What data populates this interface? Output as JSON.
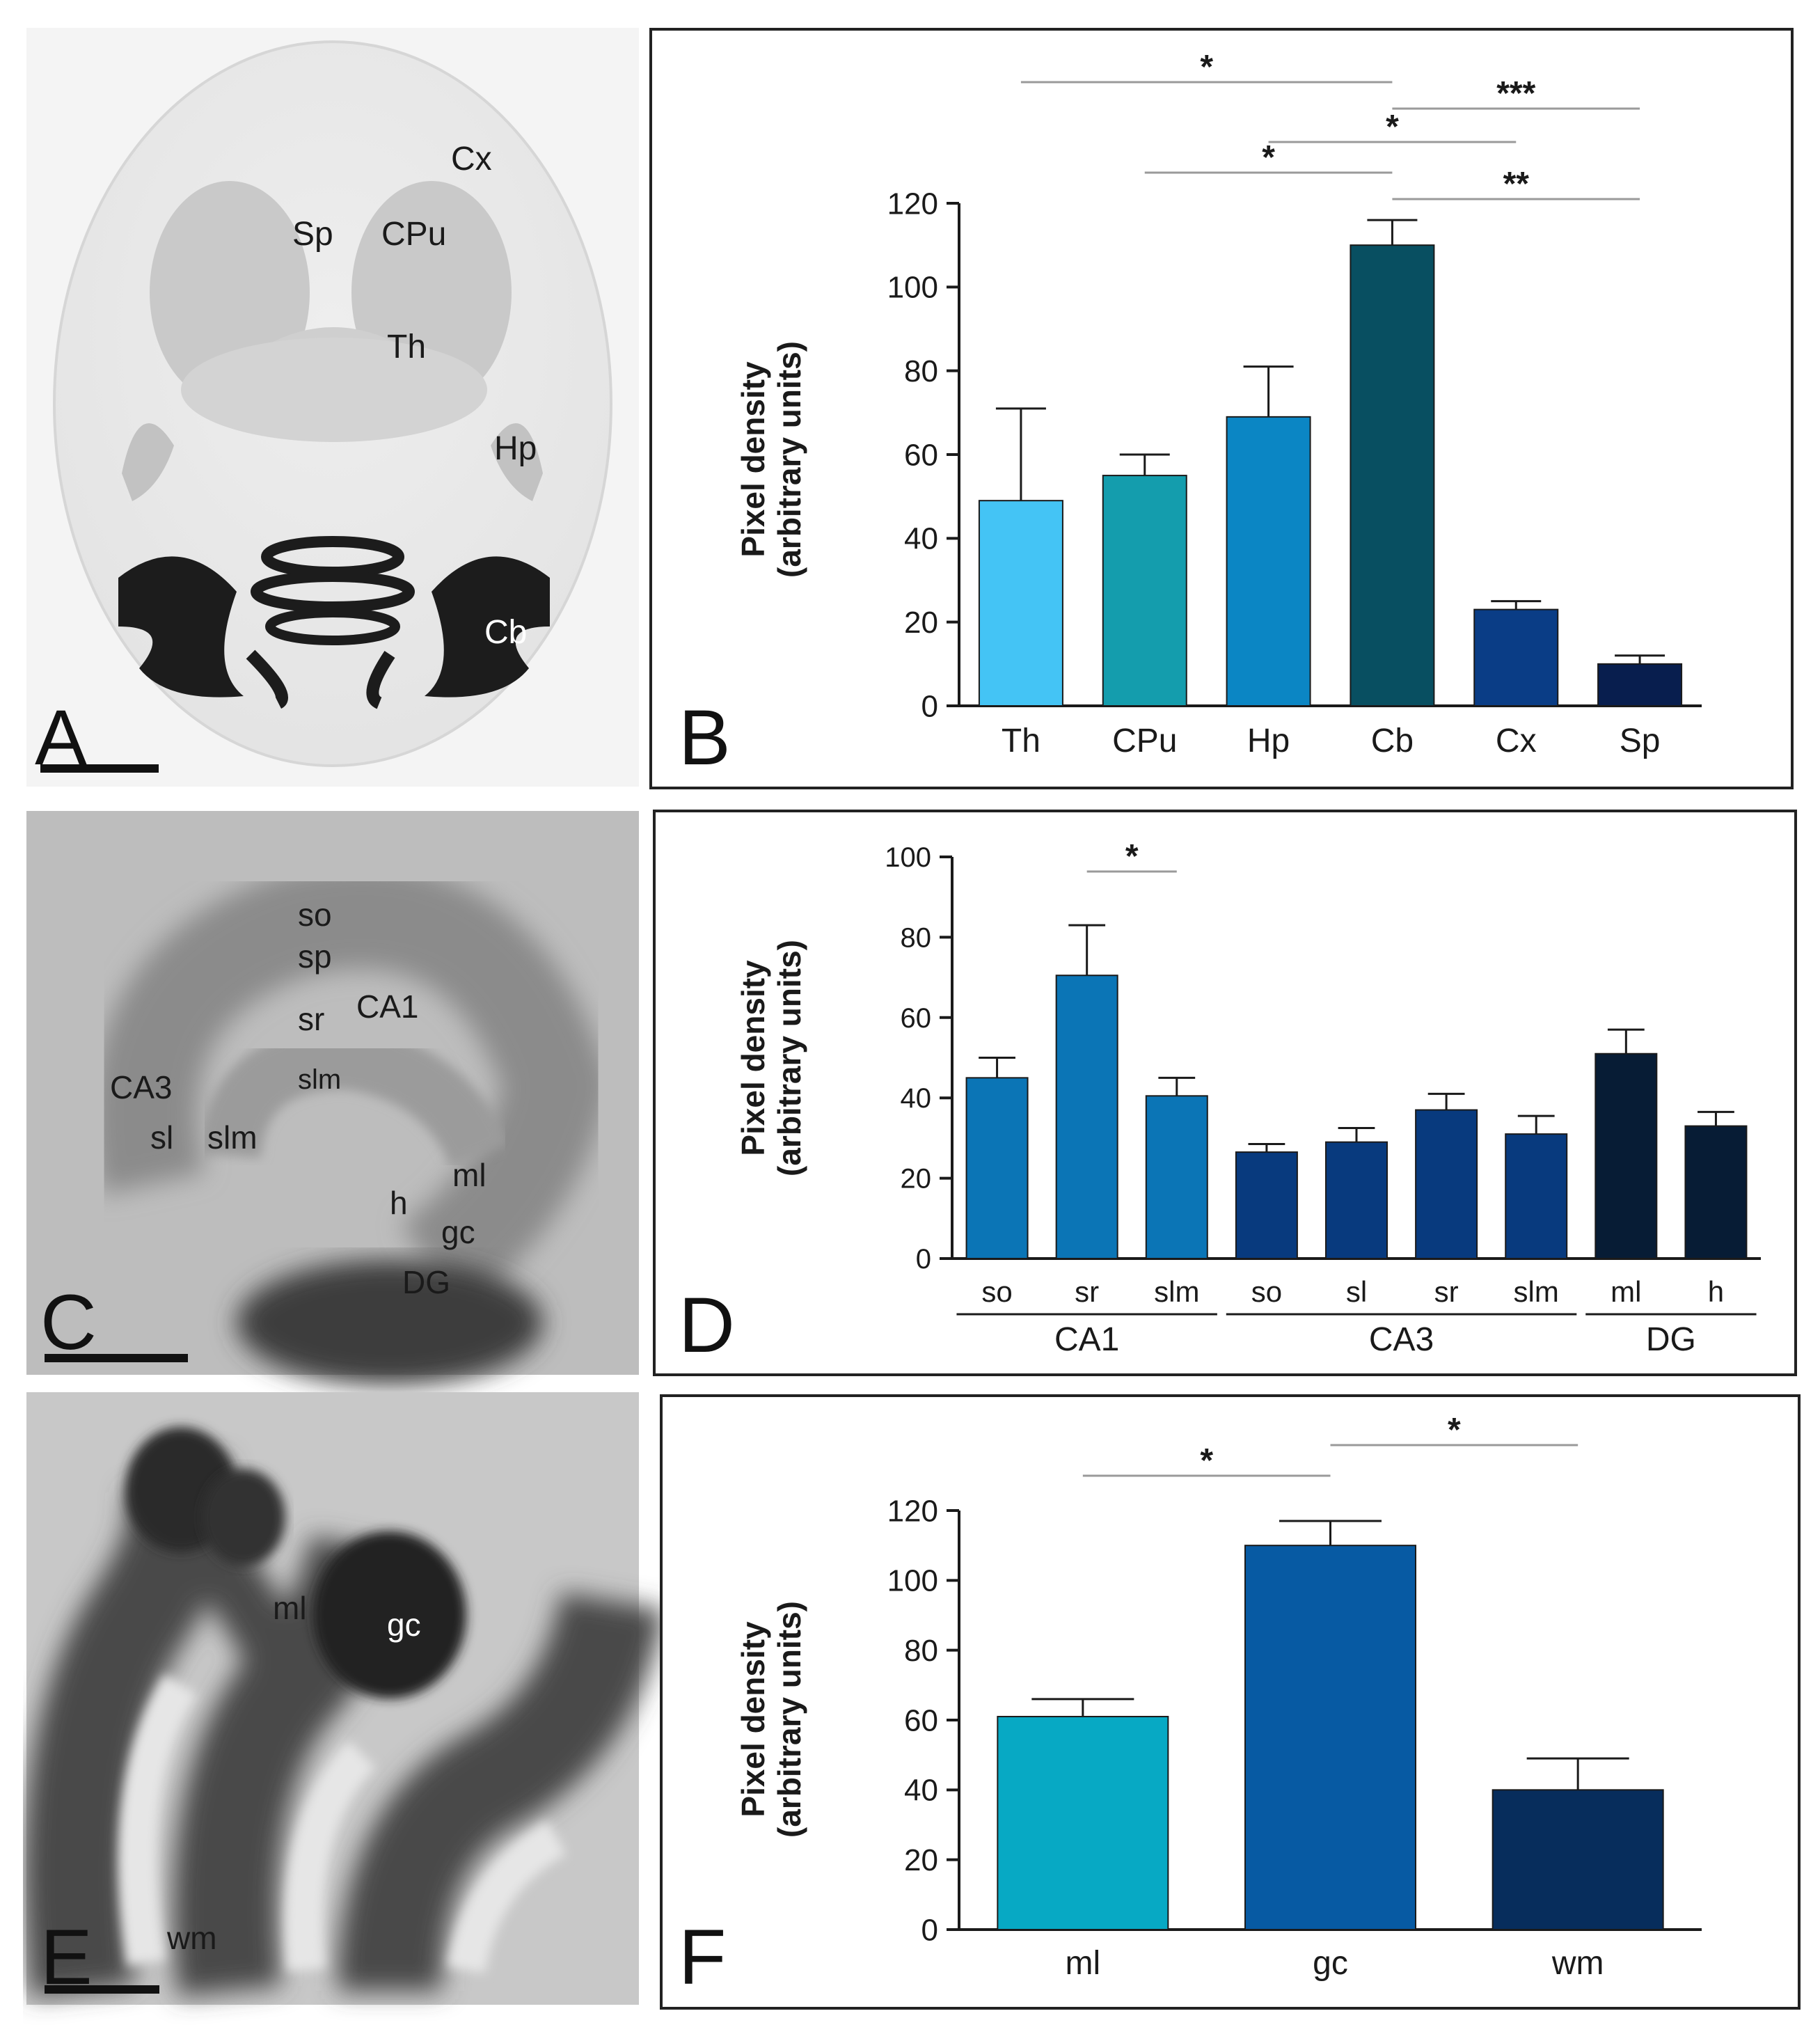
{
  "panels": {
    "A": {
      "letter": "A",
      "labels": [
        "Cx",
        "Sp",
        "CPu",
        "Th",
        "Hp",
        "Cb"
      ]
    },
    "C": {
      "letter": "C",
      "labels": [
        "so",
        "sp",
        "sr",
        "CA1",
        "slm",
        "CA3",
        "sl",
        "slm",
        "ml",
        "h",
        "gc",
        "DG"
      ]
    },
    "E": {
      "letter": "E",
      "labels": [
        "ml",
        "gc",
        "wm"
      ]
    }
  },
  "chart_data": [
    {
      "panel": "B",
      "type": "bar",
      "ylabel": [
        "Pixel density",
        "(arbitrary units)"
      ],
      "ylim": [
        0,
        120
      ],
      "yticks": [
        0,
        20,
        40,
        60,
        80,
        100,
        120
      ],
      "categories": [
        "Th",
        "CPu",
        "Hp",
        "Cb",
        "Cx",
        "Sp"
      ],
      "values": [
        49,
        55,
        69,
        110,
        23,
        10
      ],
      "errors": [
        22,
        5,
        12,
        6,
        2,
        2
      ],
      "colors": [
        "#44c4f5",
        "#149dad",
        "#0b86c4",
        "#084f61",
        "#0a3d86",
        "#081e4e"
      ],
      "significance": [
        {
          "from": "Th",
          "to": "Cb",
          "label": "*"
        },
        {
          "from": "Cb",
          "to": "Sp",
          "label": "***"
        },
        {
          "from": "Hp",
          "to": "Cx",
          "label": "*"
        },
        {
          "from": "CPu",
          "to": "Cb",
          "label": "*"
        },
        {
          "from": "Cb",
          "to": "Sp",
          "label": "**"
        }
      ]
    },
    {
      "panel": "D",
      "type": "bar",
      "ylabel": [
        "Pixel density",
        "(arbitrary units)"
      ],
      "ylim": [
        0,
        100
      ],
      "yticks": [
        0,
        20,
        40,
        60,
        80,
        100
      ],
      "categories": [
        "so",
        "sr",
        "slm",
        "so",
        "sl",
        "sr",
        "slm",
        "ml",
        "h"
      ],
      "values": [
        45,
        70.5,
        40.5,
        26.5,
        29,
        37,
        31,
        51,
        33
      ],
      "errors": [
        5,
        12.5,
        4.5,
        2,
        3.5,
        4,
        4.5,
        6,
        3.5
      ],
      "colors": [
        "#0b75b6",
        "#0b75b6",
        "#0b75b6",
        "#083a7e",
        "#083a7e",
        "#083a7e",
        "#083a7e",
        "#071c35",
        "#071c35"
      ],
      "groups": [
        {
          "label": "CA1",
          "start": 0,
          "end": 2
        },
        {
          "label": "CA3",
          "start": 3,
          "end": 6
        },
        {
          "label": "DG",
          "start": 7,
          "end": 8
        }
      ],
      "significance": [
        {
          "from": 1,
          "to": 2,
          "label": "*"
        }
      ]
    },
    {
      "panel": "F",
      "type": "bar",
      "ylabel": [
        "Pixel density",
        "(arbitrary units)"
      ],
      "ylim": [
        0,
        120
      ],
      "yticks": [
        0,
        20,
        40,
        60,
        80,
        100,
        120
      ],
      "categories": [
        "ml",
        "gc",
        "wm"
      ],
      "values": [
        61,
        110,
        40
      ],
      "errors": [
        5,
        7,
        9
      ],
      "colors": [
        "#07a9c4",
        "#075aa3",
        "#072d5c"
      ],
      "significance": [
        {
          "from": "ml",
          "to": "gc",
          "label": "*"
        },
        {
          "from": "gc",
          "to": "wm",
          "label": "*"
        }
      ]
    }
  ],
  "chart_letters": [
    "B",
    "D",
    "F"
  ]
}
